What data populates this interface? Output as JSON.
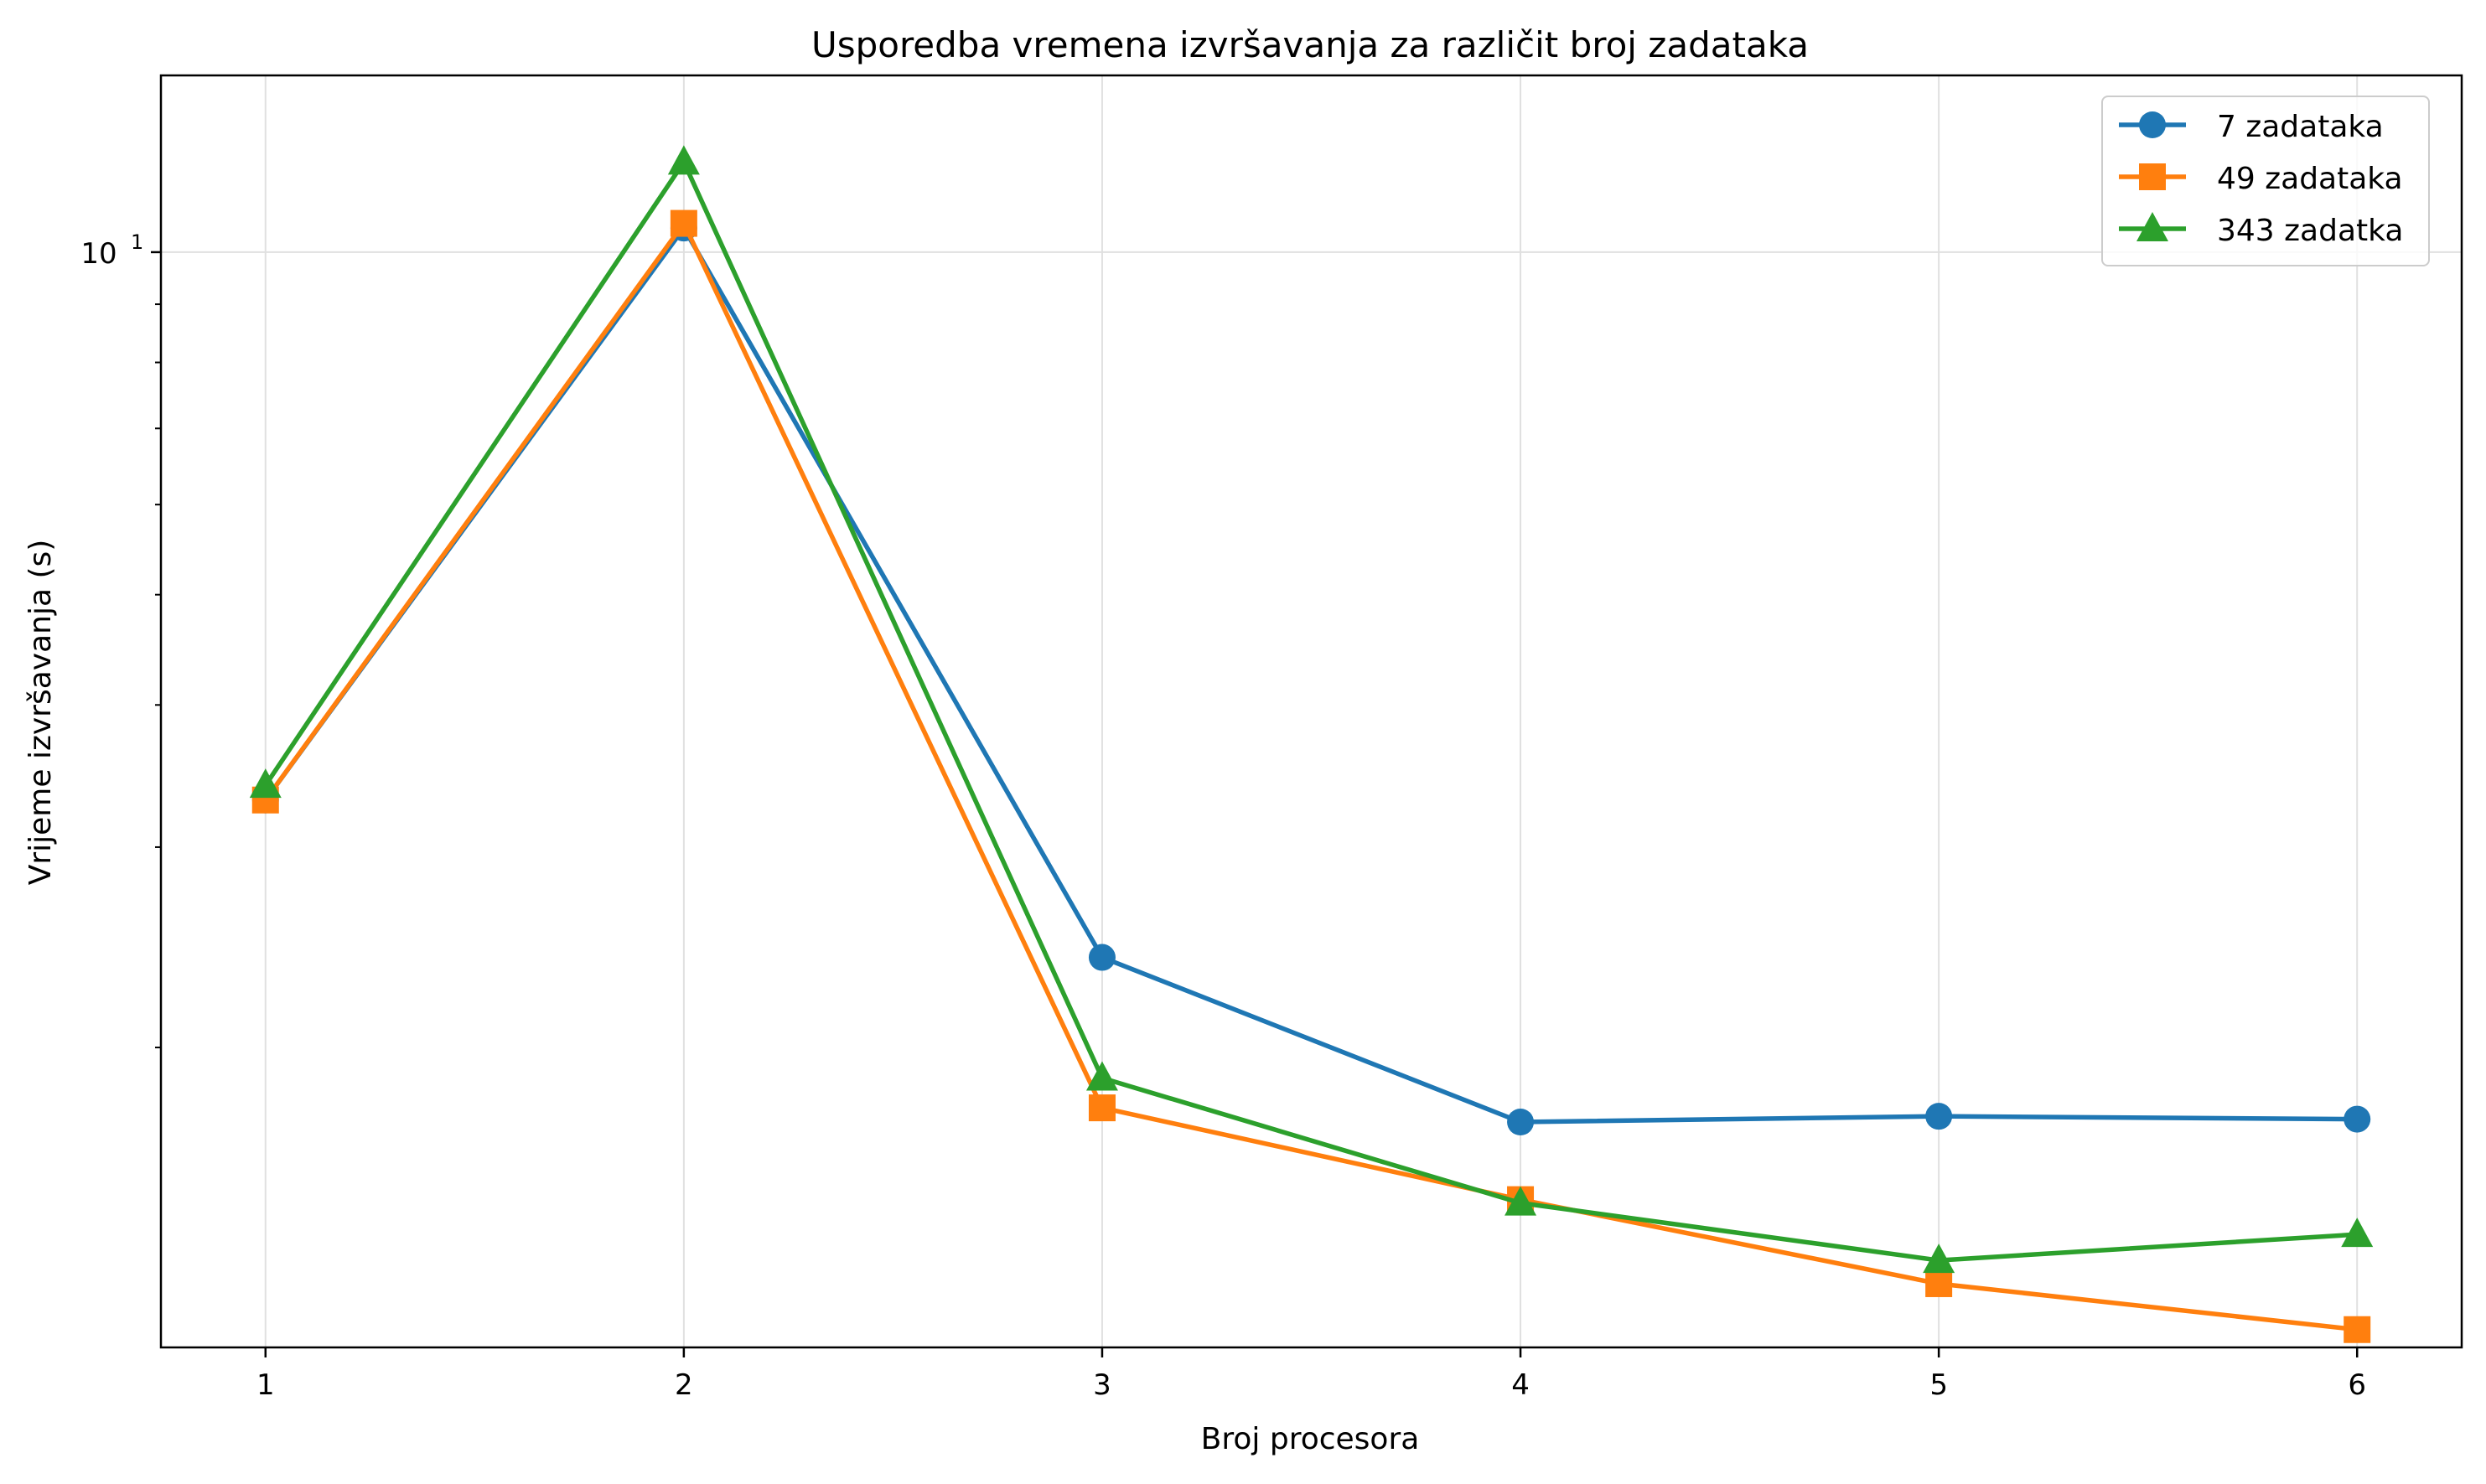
{
  "chart_data": {
    "type": "line",
    "title": "Usporedba vremena izvršavanja za različit broj zadataka",
    "xlabel": "Broj procesora",
    "ylabel": "Vrijeme izvršavanja (s)",
    "yscale": "log",
    "x": [
      1,
      2,
      3,
      4,
      5,
      6
    ],
    "xlim": [
      0.75,
      6.25
    ],
    "ylim": [
      1.09,
      14.3
    ],
    "xticks": [
      "1",
      "2",
      "3",
      "4",
      "5",
      "6"
    ],
    "yticks_major": [
      {
        "value": 10,
        "base": "10",
        "exponent": "1"
      }
    ],
    "yticks_minor": [
      2,
      3,
      4,
      5,
      6,
      7,
      8,
      9
    ],
    "grid": true,
    "legend_position": "upper right",
    "series": [
      {
        "name": "7 zadataka",
        "color": "#1f77b4",
        "marker": "circle",
        "values": [
          3.3,
          10.5,
          2.4,
          1.72,
          1.74,
          1.73
        ]
      },
      {
        "name": "49 zadataka",
        "color": "#ff7f0e",
        "marker": "square",
        "values": [
          3.3,
          10.6,
          1.77,
          1.47,
          1.24,
          1.13
        ]
      },
      {
        "name": "343 zadatka",
        "color": "#2ca02c",
        "marker": "triangle",
        "values": [
          3.4,
          12.0,
          1.88,
          1.46,
          1.3,
          1.37
        ]
      }
    ]
  }
}
